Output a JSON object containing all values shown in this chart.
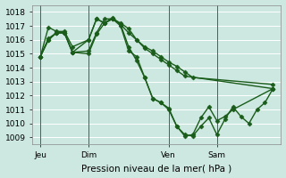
{
  "background_color": "#cce8e0",
  "grid_color": "#ffffff",
  "line_color": "#1a5c1a",
  "marker": "D",
  "markersize": 2.5,
  "linewidth": 1.0,
  "xlabel": "Pression niveau de la mer( hPa )",
  "ylim": [
    1008.5,
    1018.5
  ],
  "yticks": [
    1009,
    1010,
    1011,
    1012,
    1013,
    1014,
    1015,
    1016,
    1017,
    1018
  ],
  "ylabel_fontsize": 6.5,
  "xlabel_fontsize": 7.5,
  "xtick_labels": [
    "Jeu",
    "Dim",
    "Ven",
    "Sam"
  ],
  "xtick_positions": [
    0,
    6,
    16,
    22
  ],
  "vline_positions": [
    0,
    6,
    16,
    22
  ],
  "xlim": [
    -1,
    30
  ],
  "series": [
    {
      "x": [
        0,
        1,
        2,
        3,
        4,
        6,
        7,
        8,
        9,
        10,
        11,
        12,
        13,
        14,
        15,
        16,
        17,
        18,
        19,
        20,
        21,
        22,
        23,
        24,
        29
      ],
      "y": [
        1014.8,
        1016.9,
        1016.6,
        1016.6,
        1015.5,
        1016.0,
        1017.5,
        1017.2,
        1017.6,
        1017.1,
        1015.5,
        1014.5,
        1013.3,
        1011.8,
        1011.5,
        1011.0,
        1009.8,
        1009.1,
        1009.2,
        1010.4,
        1011.2,
        1010.2,
        1010.5,
        1011.0,
        1012.5
      ]
    },
    {
      "x": [
        0,
        1,
        2,
        3,
        4,
        6,
        7,
        8,
        9,
        10,
        11,
        12,
        13,
        14,
        15,
        16,
        17,
        18,
        29
      ],
      "y": [
        1014.8,
        1016.1,
        1016.5,
        1016.5,
        1015.1,
        1015.2,
        1016.5,
        1017.5,
        1017.5,
        1017.2,
        1016.8,
        1016.0,
        1015.4,
        1015.0,
        1014.6,
        1014.2,
        1013.8,
        1013.4,
        1012.5
      ]
    },
    {
      "x": [
        0,
        1,
        2,
        3,
        4,
        6,
        7,
        8,
        9,
        10,
        11,
        12,
        13,
        14,
        15,
        16,
        17,
        18,
        19,
        29
      ],
      "y": [
        1014.8,
        1016.0,
        1016.5,
        1016.5,
        1015.1,
        1015.0,
        1016.4,
        1017.2,
        1017.5,
        1017.1,
        1016.5,
        1016.0,
        1015.5,
        1015.2,
        1014.8,
        1014.4,
        1014.1,
        1013.7,
        1013.3,
        1012.8
      ]
    },
    {
      "x": [
        0,
        1,
        2,
        3,
        4,
        6,
        7,
        8,
        9,
        10,
        11,
        12,
        13,
        14,
        15,
        16,
        17,
        18,
        19,
        20,
        21,
        22,
        23,
        24,
        25,
        26,
        27,
        28,
        29
      ],
      "y": [
        1014.8,
        1016.0,
        1016.5,
        1016.5,
        1015.1,
        1016.0,
        1017.5,
        1017.2,
        1017.5,
        1017.0,
        1015.2,
        1014.8,
        1013.3,
        1011.8,
        1011.5,
        1011.1,
        1009.8,
        1009.2,
        1009.1,
        1009.8,
        1010.4,
        1009.2,
        1010.3,
        1011.2,
        1010.5,
        1010.0,
        1011.0,
        1011.5,
        1012.5
      ]
    }
  ]
}
